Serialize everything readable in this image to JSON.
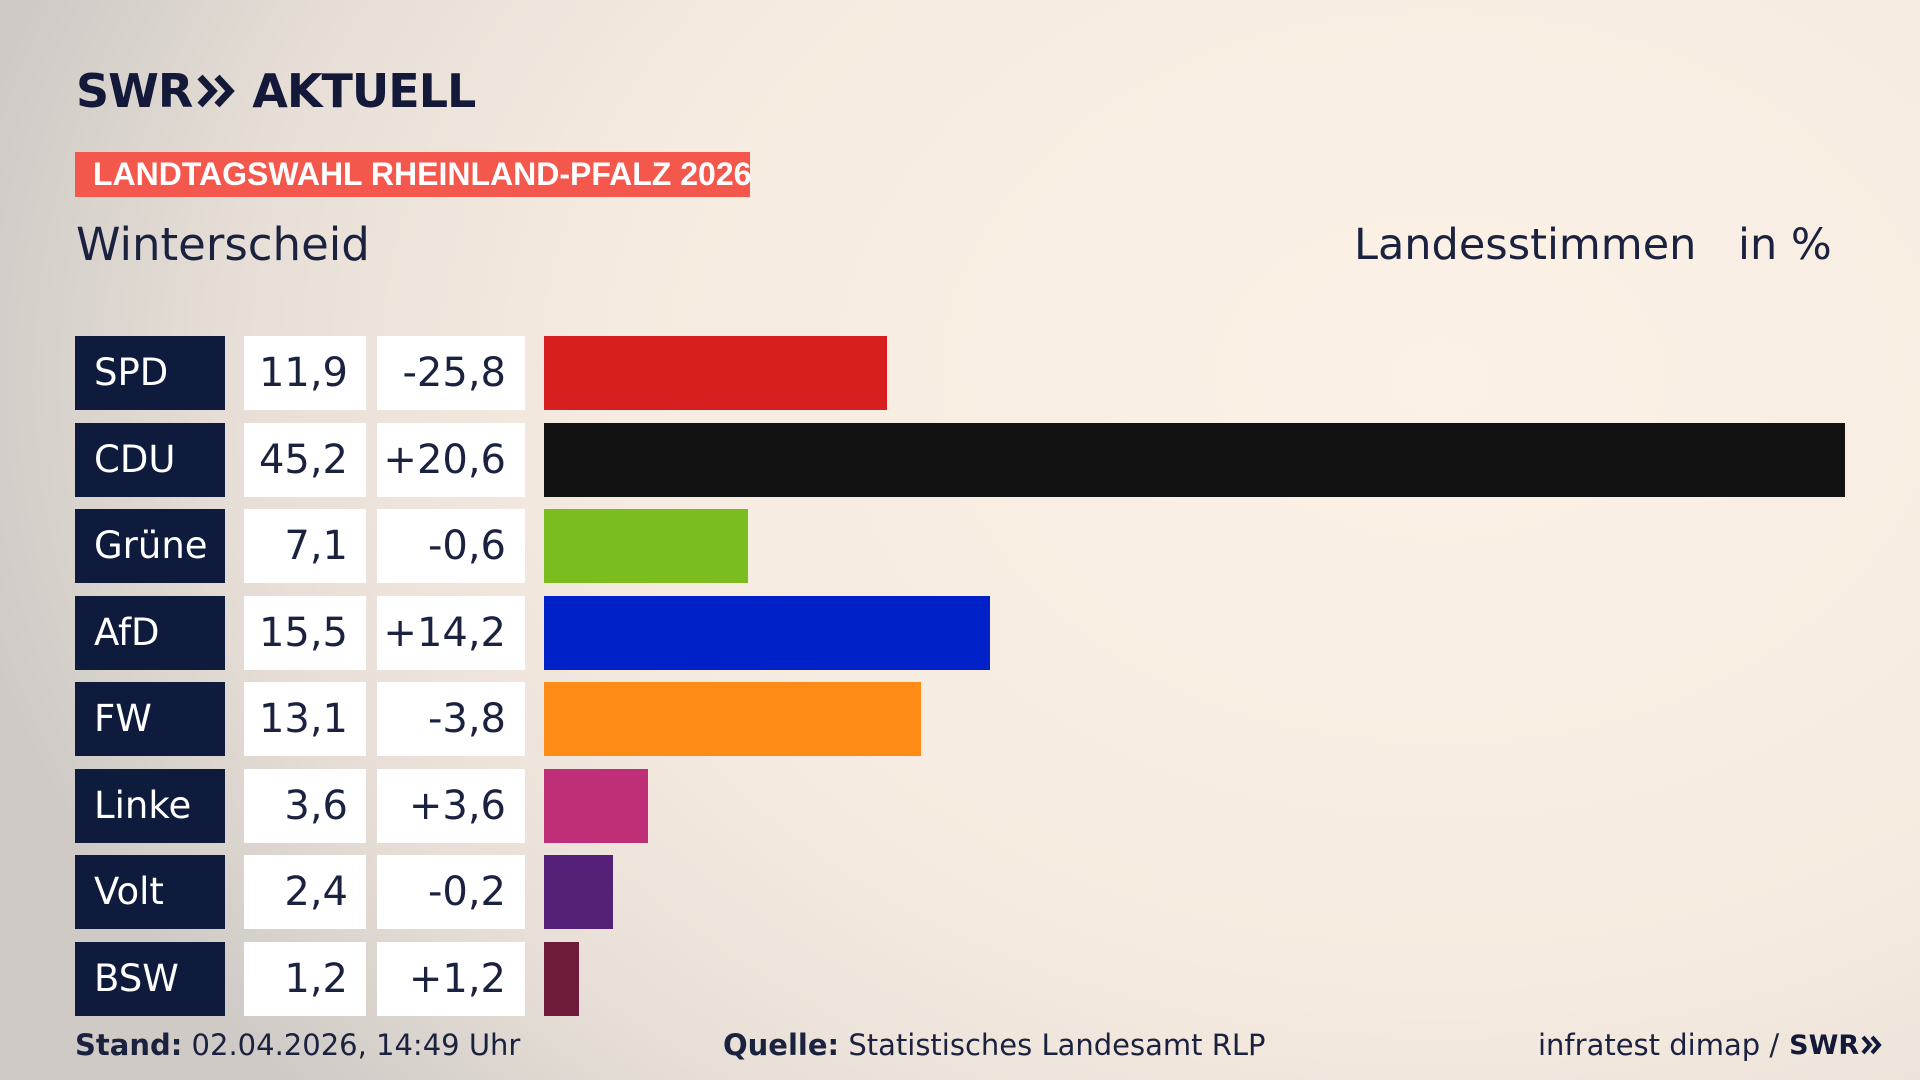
{
  "header": {
    "logo_swr": "SWR",
    "logo_aktuell": "AKTUELL",
    "tag": "LANDTAGSWAHL RHEINLAND-PFALZ 2026",
    "place": "Winterscheid",
    "measure": "Landesstimmen",
    "unit": "in %"
  },
  "chart_data": {
    "type": "bar",
    "orientation": "horizontal",
    "title": "Winterscheid",
    "categories": [
      "SPD",
      "CDU",
      "Grüne",
      "AfD",
      "FW",
      "Linke",
      "Volt",
      "BSW"
    ],
    "series": [
      {
        "name": "Landesstimmen",
        "values": [
          11.9,
          45.2,
          7.1,
          15.5,
          13.1,
          3.6,
          2.4,
          1.2
        ]
      }
    ],
    "value_labels": [
      "11,9",
      "45,2",
      "7,1",
      "15,5",
      "13,1",
      "3,6",
      "2,4",
      "1,2"
    ],
    "diff_labels": [
      "-25,8",
      "+20,6",
      "-0,6",
      "+14,2",
      "-3,8",
      "+3,6",
      "-0,2",
      "+1,2"
    ],
    "colors": [
      "#d71f20",
      "#121212",
      "#7bbc1f",
      "#0021c8",
      "#ff8b17",
      "#be2f78",
      "#552178",
      "#6d1a3b"
    ],
    "xlim": [
      0,
      45.2
    ],
    "grid": false,
    "legend": "none"
  },
  "footer": {
    "stand_label": "Stand:",
    "stand_value": "02.04.2026, 14:49 Uhr",
    "source_label": "Quelle:",
    "source_value": "Statistisches Landesamt RLP",
    "credit": "infratest dimap /",
    "credit_logo": "SWR"
  }
}
